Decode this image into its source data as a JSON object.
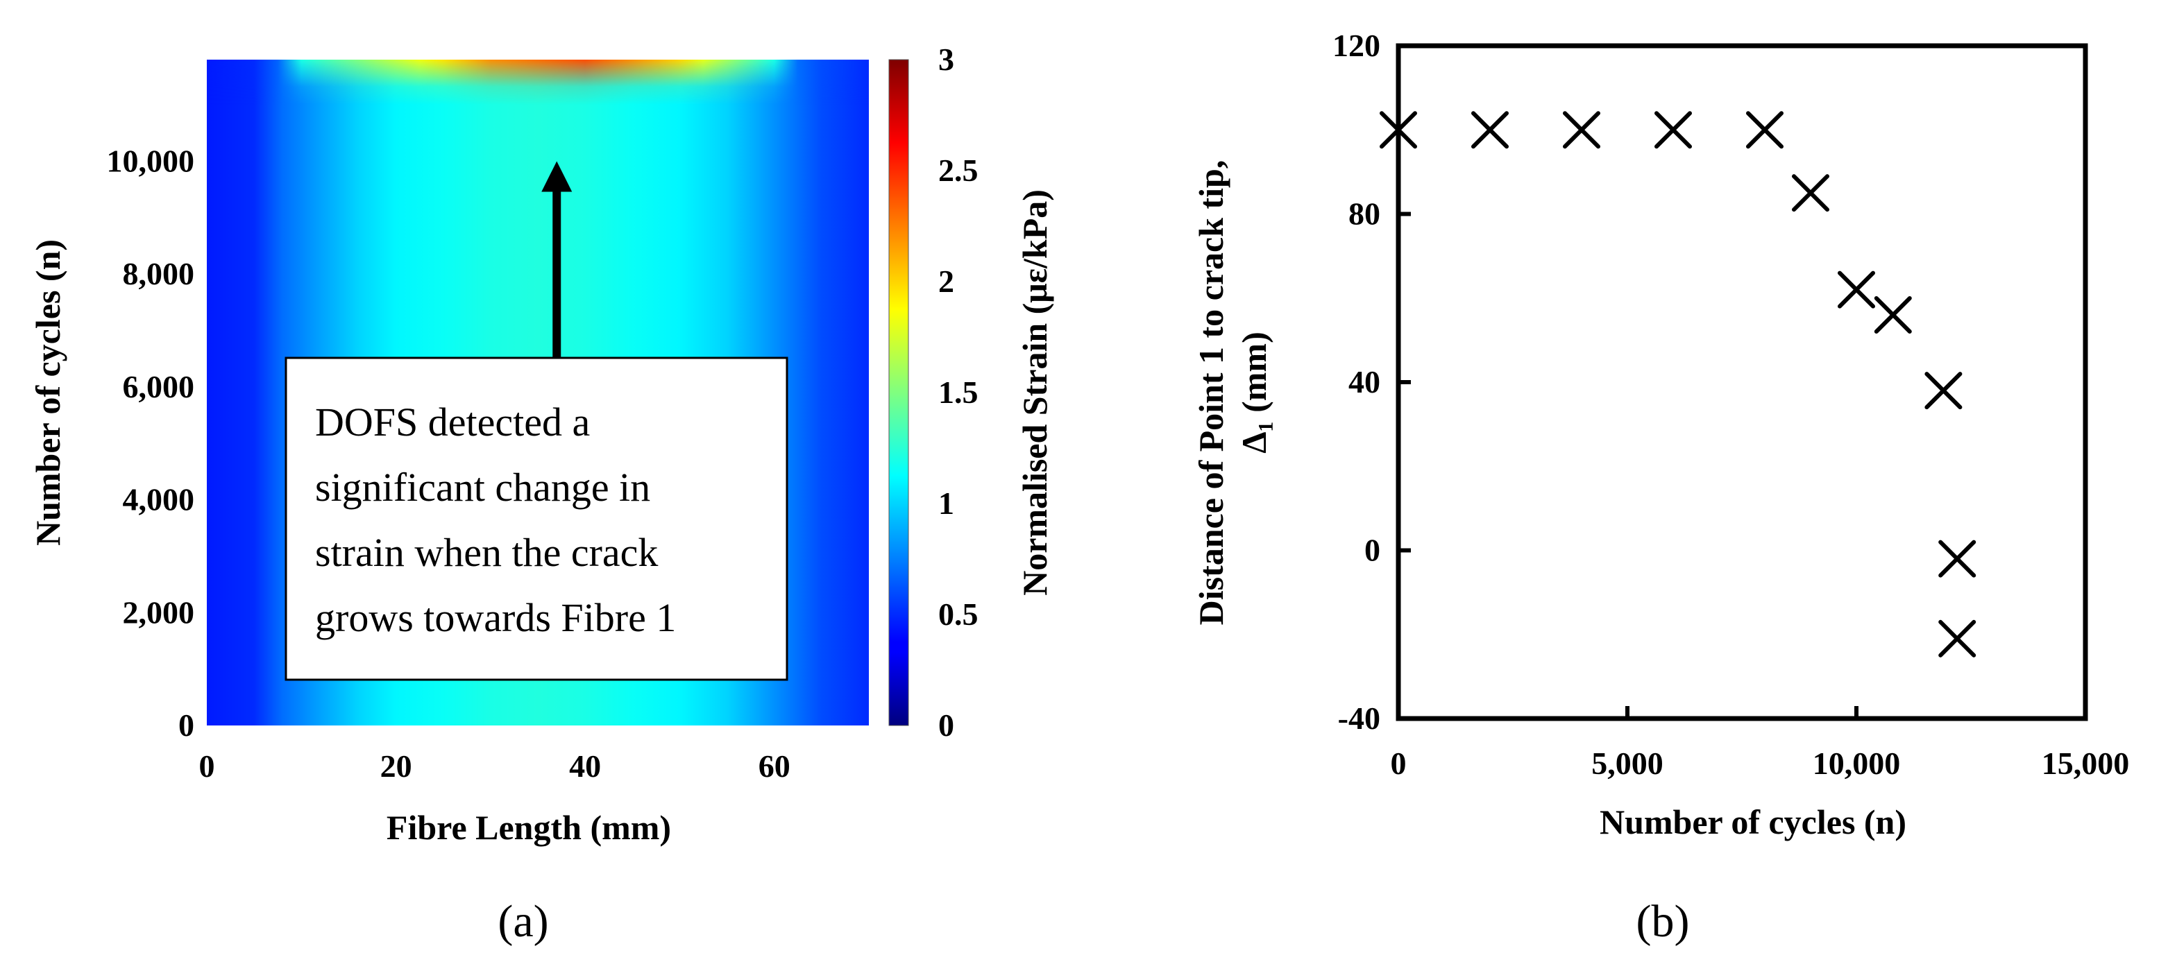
{
  "chart_data": [
    {
      "type": "heatmap",
      "panel_label": "(a)",
      "xlabel": "Fibre Length (mm)",
      "ylabel": "Number of cycles (n)",
      "xlim": [
        0,
        70
      ],
      "ylim": [
        0,
        11800
      ],
      "xticks": [
        {
          "value": 0,
          "label": "0"
        },
        {
          "value": 20,
          "label": "20"
        },
        {
          "value": 40,
          "label": "40"
        },
        {
          "value": 60,
          "label": "60"
        }
      ],
      "yticks": [
        {
          "value": 0,
          "label": "0"
        },
        {
          "value": 2000,
          "label": "2,000"
        },
        {
          "value": 4000,
          "label": "4,000"
        },
        {
          "value": 6000,
          "label": "6,000"
        },
        {
          "value": 8000,
          "label": "8,000"
        },
        {
          "value": 10000,
          "label": "10,000"
        }
      ],
      "colorbar": {
        "label": "Normalised Strain (με/kPa)",
        "range": [
          0,
          3
        ],
        "ticks": [
          {
            "value": 0,
            "label": "0"
          },
          {
            "value": 0.5,
            "label": "0.5"
          },
          {
            "value": 1,
            "label": "1"
          },
          {
            "value": 1.5,
            "label": "1.5"
          },
          {
            "value": 2,
            "label": "2"
          },
          {
            "value": 2.5,
            "label": "2.5"
          },
          {
            "value": 3,
            "label": "3"
          }
        ]
      },
      "profile": {
        "fibre_length": [
          0,
          5,
          8,
          12,
          16,
          20,
          25,
          30,
          35,
          40,
          45,
          50,
          55,
          60,
          65,
          70
        ],
        "strain": [
          0.45,
          0.5,
          0.7,
          0.85,
          1.0,
          1.1,
          1.15,
          1.2,
          1.22,
          1.2,
          1.15,
          1.1,
          1.0,
          0.8,
          0.6,
          0.5
        ]
      },
      "crack_tip_strain": {
        "cycles_start": 11000,
        "fibre_length": [
          10,
          20,
          30,
          40,
          50,
          60
        ],
        "peak_strain": [
          1.2,
          1.7,
          2.2,
          2.4,
          2.0,
          1.2
        ]
      },
      "annotation": {
        "text": "DOFS detected a significant change in strain when the crack grows towards Fibre 1",
        "lines": [
          "DOFS detected a",
          "significant change in",
          "strain when the crack",
          "grows towards Fibre 1"
        ],
        "arrow_x": 37,
        "arrow_from_cycles": 6300,
        "arrow_to_cycles": 10000
      }
    },
    {
      "type": "scatter",
      "panel_label": "(b)",
      "marker": "x",
      "xlabel": "Number of cycles (n)",
      "ylabel_lines": [
        "Distance of Point 1 to crack tip,",
        "Δ₁ (mm)"
      ],
      "xlim": [
        0,
        15000
      ],
      "ylim": [
        -40,
        120
      ],
      "xticks": [
        {
          "value": 0,
          "label": "0"
        },
        {
          "value": 5000,
          "label": "5,000"
        },
        {
          "value": 10000,
          "label": "10,000"
        },
        {
          "value": 15000,
          "label": "15,000"
        }
      ],
      "yticks": [
        {
          "value": -40,
          "label": "-40"
        },
        {
          "value": 0,
          "label": "0"
        },
        {
          "value": 40,
          "label": "40"
        },
        {
          "value": 80,
          "label": "80"
        },
        {
          "value": 120,
          "label": "120"
        }
      ],
      "points": [
        {
          "x": 0,
          "y": 100
        },
        {
          "x": 2000,
          "y": 100
        },
        {
          "x": 4000,
          "y": 100
        },
        {
          "x": 6000,
          "y": 100
        },
        {
          "x": 8000,
          "y": 100
        },
        {
          "x": 9000,
          "y": 85
        },
        {
          "x": 10000,
          "y": 62
        },
        {
          "x": 10800,
          "y": 56
        },
        {
          "x": 11900,
          "y": 38
        },
        {
          "x": 12200,
          "y": -2
        },
        {
          "x": 12200,
          "y": -21
        }
      ]
    }
  ]
}
